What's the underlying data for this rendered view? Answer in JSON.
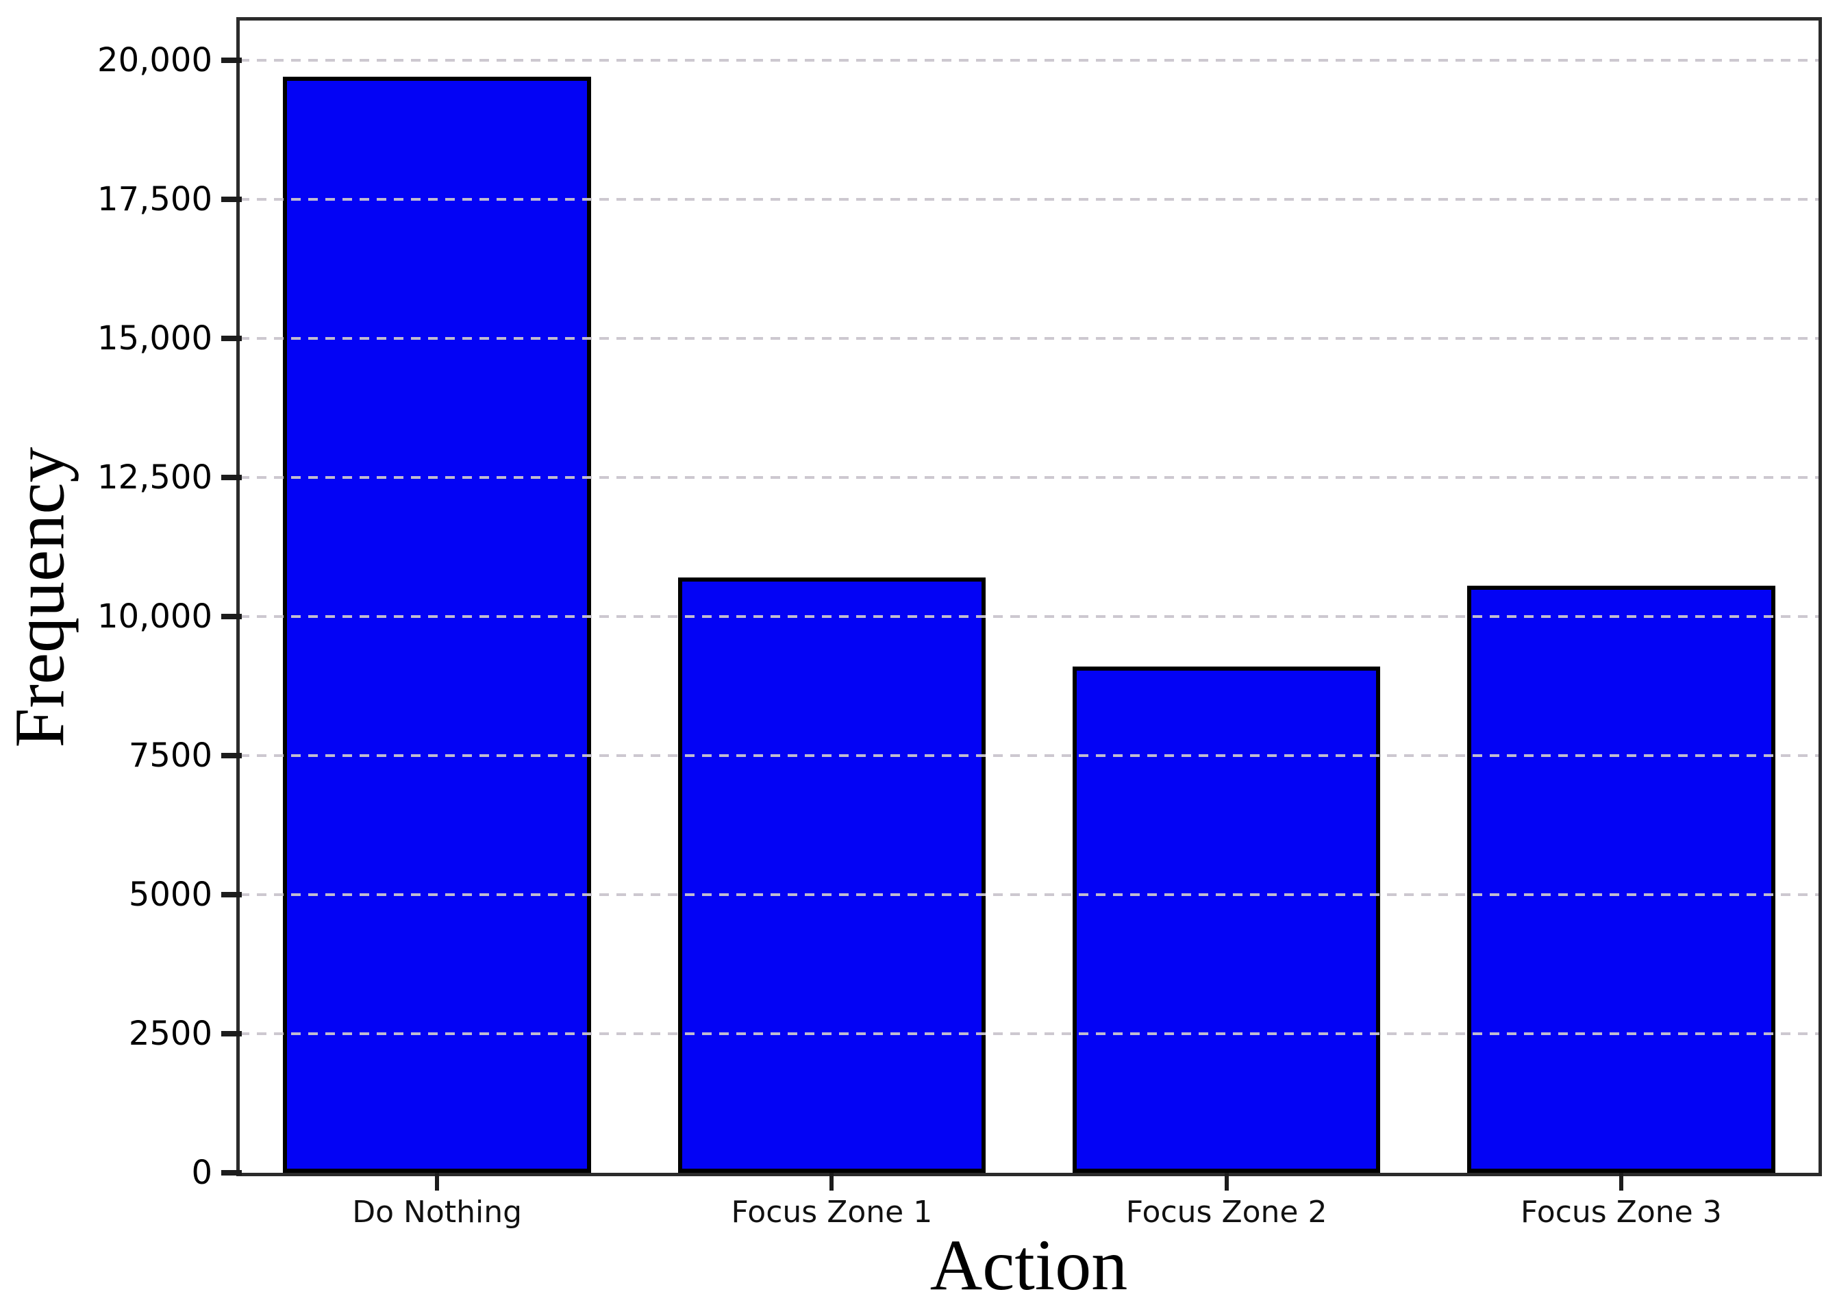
{
  "chart_data": {
    "type": "bar",
    "title": "",
    "xlabel": "Action",
    "ylabel": "Frequency",
    "categories": [
      "Do Nothing",
      "Focus Zone 1",
      "Focus Zone 2",
      "Focus Zone 3"
    ],
    "values": [
      19700,
      10700,
      9100,
      10550
    ],
    "ylim": [
      0,
      20710
    ],
    "yticks": [
      {
        "value": 0,
        "label": "0"
      },
      {
        "value": 2500,
        "label": "2500"
      },
      {
        "value": 5000,
        "label": "5000"
      },
      {
        "value": 7500,
        "label": "7500"
      },
      {
        "value": 10000,
        "label": "10,000"
      },
      {
        "value": 12500,
        "label": "12,500"
      },
      {
        "value": 15000,
        "label": "15,000"
      },
      {
        "value": 17500,
        "label": "17,500"
      },
      {
        "value": 20000,
        "label": "20,000"
      }
    ],
    "grid": {
      "axis": "y",
      "style": "dashed",
      "color": "#cac5ce"
    },
    "bar_color": "#0303f5",
    "bar_edge_color": "#000000",
    "spine_color": "#2b2b2b",
    "tick_color": "#1c1c1c",
    "background": "#ffffff"
  }
}
